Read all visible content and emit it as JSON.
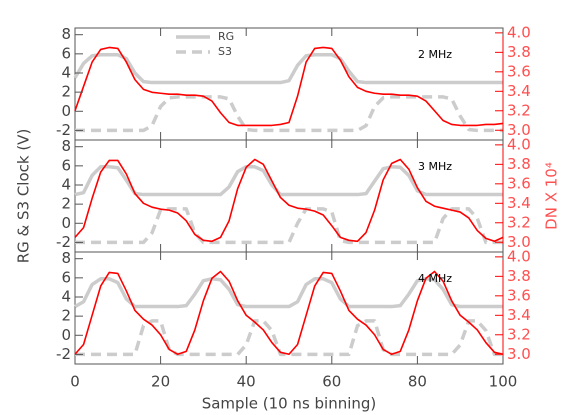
{
  "chart_data": [
    {
      "type": "line",
      "annotation": "2 MHz",
      "legend": "upper left",
      "x": [
        0,
        2,
        4,
        6,
        8,
        10,
        12,
        14,
        16,
        18,
        20,
        22,
        24,
        26,
        28,
        30,
        32,
        34,
        36,
        38,
        40,
        42,
        44,
        46,
        48,
        50,
        52,
        54,
        56,
        58,
        60,
        62,
        64,
        66,
        68,
        70,
        72,
        74,
        76,
        78,
        80,
        82,
        84,
        86,
        88,
        90,
        92,
        94,
        96,
        98,
        100
      ],
      "xlim": [
        0,
        100
      ],
      "xticks": [
        0,
        20,
        40,
        60,
        80,
        100
      ],
      "show_xtick_labels": false,
      "ylim": [
        -3,
        8.7
      ],
      "yticks": [
        -2,
        0,
        2,
        4,
        6,
        8
      ],
      "y2lim": [
        2.9,
        4.05
      ],
      "y2ticks": [
        {
          "value": 3,
          "label": "3.0"
        },
        3.2,
        3.4,
        3.6,
        3.8,
        {
          "value": 4,
          "label": "4.0"
        }
      ],
      "series": [
        {
          "name": "RG",
          "color": "#cccccc",
          "linestyle": "solid",
          "values": [
            3.5,
            5,
            5.8,
            5.9,
            5.9,
            5.9,
            5.5,
            4,
            3.1,
            3,
            3,
            3,
            3,
            3,
            3,
            3,
            3,
            3,
            3,
            3,
            3,
            3,
            3,
            3,
            3,
            3.2,
            4.8,
            5.8,
            5.9,
            5.9,
            5.9,
            5.5,
            4.2,
            3.1,
            3,
            3,
            3,
            3,
            3,
            3,
            3,
            3,
            3,
            3,
            3,
            3,
            3,
            3,
            3,
            3,
            3
          ]
        },
        {
          "name": "S3",
          "color": "#cccccc",
          "linestyle": "dashed",
          "values": [
            -2,
            -2,
            -2,
            -2,
            -2,
            -2,
            -2,
            -2,
            -2,
            -1.5,
            0.5,
            1.4,
            1.5,
            1.5,
            1.5,
            1.5,
            1.5,
            1.5,
            1.3,
            -0.5,
            -1.9,
            -2,
            -2,
            -2,
            -2,
            -2,
            -2,
            -2,
            -2,
            -2,
            -2,
            -2,
            -2,
            -2,
            -1.5,
            0.5,
            1.4,
            1.5,
            1.5,
            1.5,
            1.5,
            1.5,
            1.5,
            1.5,
            1.3,
            -0.5,
            -1.9,
            -2,
            -2,
            -2,
            -2
          ]
        },
        {
          "color": "#ff0000",
          "linestyle": "solid",
          "axis": "y2",
          "values": [
            3.2,
            3.45,
            3.7,
            3.83,
            3.85,
            3.84,
            3.7,
            3.52,
            3.42,
            3.39,
            3.38,
            3.37,
            3.37,
            3.36,
            3.36,
            3.35,
            3.3,
            3.18,
            3.08,
            3.05,
            3.05,
            3.05,
            3.05,
            3.05,
            3.06,
            3.08,
            3.35,
            3.7,
            3.84,
            3.85,
            3.84,
            3.72,
            3.55,
            3.44,
            3.4,
            3.38,
            3.37,
            3.37,
            3.36,
            3.36,
            3.35,
            3.3,
            3.2,
            3.1,
            3.06,
            3.05,
            3.05,
            3.05,
            3.06,
            3.06,
            3.07
          ]
        }
      ]
    },
    {
      "type": "line",
      "annotation": "3 MHz",
      "ylabel": "RG & S3 Clock (V)",
      "y2label": "DN X 10⁴",
      "x": [
        0,
        2,
        4,
        6,
        8,
        10,
        12,
        14,
        16,
        18,
        20,
        22,
        24,
        26,
        28,
        30,
        32,
        34,
        36,
        38,
        40,
        42,
        44,
        46,
        48,
        50,
        52,
        54,
        56,
        58,
        60,
        62,
        64,
        66,
        68,
        70,
        72,
        74,
        76,
        78,
        80,
        82,
        84,
        86,
        88,
        90,
        92,
        94,
        96,
        98,
        100
      ],
      "xlim": [
        0,
        100
      ],
      "xticks": [
        0,
        20,
        40,
        60,
        80,
        100
      ],
      "show_xtick_labels": false,
      "ylim": [
        -3,
        8.7
      ],
      "yticks": [
        -2,
        0,
        2,
        4,
        6,
        8
      ],
      "y2lim": [
        2.9,
        4.05
      ],
      "y2ticks": [
        {
          "value": 3,
          "label": "3.0"
        },
        3.2,
        3.4,
        3.6,
        3.8,
        {
          "value": 4,
          "label": "4.0"
        }
      ],
      "series": [
        {
          "color": "#cccccc",
          "linestyle": "solid",
          "values": [
            3,
            3.2,
            5,
            5.9,
            5.9,
            5.8,
            4.5,
            3.1,
            3,
            3,
            3,
            3,
            3,
            3,
            3,
            3,
            3,
            3,
            3.8,
            5.4,
            5.9,
            5.9,
            5.5,
            4,
            3,
            3,
            3,
            3,
            3,
            3,
            3,
            3,
            3,
            3,
            3.1,
            4.4,
            5.7,
            5.9,
            5.85,
            5,
            3.4,
            3,
            3,
            3,
            3,
            3,
            3,
            3,
            3,
            3,
            3
          ]
        },
        {
          "color": "#cccccc",
          "linestyle": "dashed",
          "values": [
            -2,
            -2,
            -2,
            -2,
            -2,
            -2,
            -2,
            -2,
            -2,
            -1,
            1.4,
            1.5,
            1.5,
            1.5,
            -1,
            -2,
            -2,
            -2,
            -2,
            -2,
            -2,
            -2,
            -2,
            -2,
            -2,
            -2,
            0,
            1.5,
            1.5,
            1.5,
            1.2,
            -1.8,
            -2,
            -2,
            -2,
            -2,
            -2,
            -2,
            -2,
            -2,
            -2,
            -2,
            -2,
            0.5,
            1.5,
            1.5,
            1.5,
            0.5,
            -2,
            -2,
            -2
          ]
        },
        {
          "color": "#ff0000",
          "linestyle": "solid",
          "axis": "y2",
          "values": [
            3.05,
            3.15,
            3.45,
            3.72,
            3.84,
            3.84,
            3.7,
            3.5,
            3.4,
            3.36,
            3.34,
            3.33,
            3.3,
            3.22,
            3.08,
            3.02,
            3.01,
            3.05,
            3.22,
            3.55,
            3.77,
            3.85,
            3.8,
            3.63,
            3.46,
            3.38,
            3.35,
            3.34,
            3.32,
            3.28,
            3.17,
            3.05,
            3.02,
            3.01,
            3.1,
            3.33,
            3.64,
            3.81,
            3.85,
            3.75,
            3.56,
            3.42,
            3.37,
            3.35,
            3.33,
            3.31,
            3.25,
            3.12,
            3.04,
            3.01,
            3.05
          ]
        }
      ]
    },
    {
      "type": "line",
      "annotation": "4 MHz",
      "xlabel": "Sample (10 ns binning)",
      "x": [
        0,
        2,
        4,
        6,
        8,
        10,
        12,
        14,
        16,
        18,
        20,
        22,
        24,
        26,
        28,
        30,
        32,
        34,
        36,
        38,
        40,
        42,
        44,
        46,
        48,
        50,
        52,
        54,
        56,
        58,
        60,
        62,
        64,
        66,
        68,
        70,
        72,
        74,
        76,
        78,
        80,
        82,
        84,
        86,
        88,
        90,
        92,
        94,
        96,
        98,
        100
      ],
      "xlim": [
        0,
        100
      ],
      "xticks": [
        0,
        20,
        40,
        60,
        80,
        100
      ],
      "show_xtick_labels": true,
      "ylim": [
        -3,
        8.7
      ],
      "yticks": [
        -2,
        0,
        2,
        4,
        6,
        8
      ],
      "y2lim": [
        2.9,
        4.05
      ],
      "y2ticks": [
        {
          "value": 3,
          "label": "3.0"
        },
        3.2,
        3.4,
        3.6,
        3.8,
        {
          "value": 4,
          "label": "4.0"
        }
      ],
      "series": [
        {
          "color": "#cccccc",
          "linestyle": "solid",
          "values": [
            3,
            3.5,
            5.3,
            5.9,
            5.9,
            5.5,
            3.8,
            3,
            3,
            3,
            3,
            3,
            3,
            3.1,
            4.3,
            5.7,
            5.9,
            5.8,
            4.8,
            3.2,
            3,
            3,
            3,
            3,
            3,
            3,
            3.5,
            5.3,
            5.9,
            5.9,
            5.5,
            3.8,
            3,
            3,
            3,
            3,
            3,
            3,
            3.1,
            4.3,
            5.7,
            5.9,
            5.8,
            4.8,
            3.2,
            3,
            3,
            3,
            3,
            3,
            3
          ]
        },
        {
          "color": "#cccccc",
          "linestyle": "dashed",
          "values": [
            -2,
            -2,
            -2,
            -2,
            -2,
            -2,
            -2,
            -2,
            1,
            1.5,
            1.5,
            -1.5,
            -2,
            -2,
            -2,
            -2,
            -2,
            -2,
            -2,
            -2,
            -1,
            1.5,
            1.5,
            0.5,
            -2,
            -2,
            -2,
            -2,
            -2,
            -2,
            -2,
            -2,
            -2,
            1,
            1.5,
            1.5,
            -1.5,
            -2,
            -2,
            -2,
            -2,
            -2,
            -2,
            -2,
            -2,
            -1,
            1.5,
            1.5,
            0.5,
            -2,
            -2
          ]
        },
        {
          "color": "#ff0000",
          "linestyle": "solid",
          "axis": "y2",
          "values": [
            3,
            3.1,
            3.4,
            3.7,
            3.84,
            3.83,
            3.65,
            3.45,
            3.36,
            3.3,
            3.2,
            3.05,
            3,
            3.03,
            3.25,
            3.55,
            3.78,
            3.85,
            3.75,
            3.55,
            3.4,
            3.33,
            3.25,
            3.12,
            3.02,
            3,
            3.1,
            3.4,
            3.7,
            3.84,
            3.83,
            3.65,
            3.45,
            3.36,
            3.3,
            3.2,
            3.05,
            3,
            3.03,
            3.25,
            3.55,
            3.78,
            3.85,
            3.75,
            3.55,
            3.4,
            3.33,
            3.25,
            3.12,
            3.02,
            3
          ]
        }
      ]
    }
  ]
}
